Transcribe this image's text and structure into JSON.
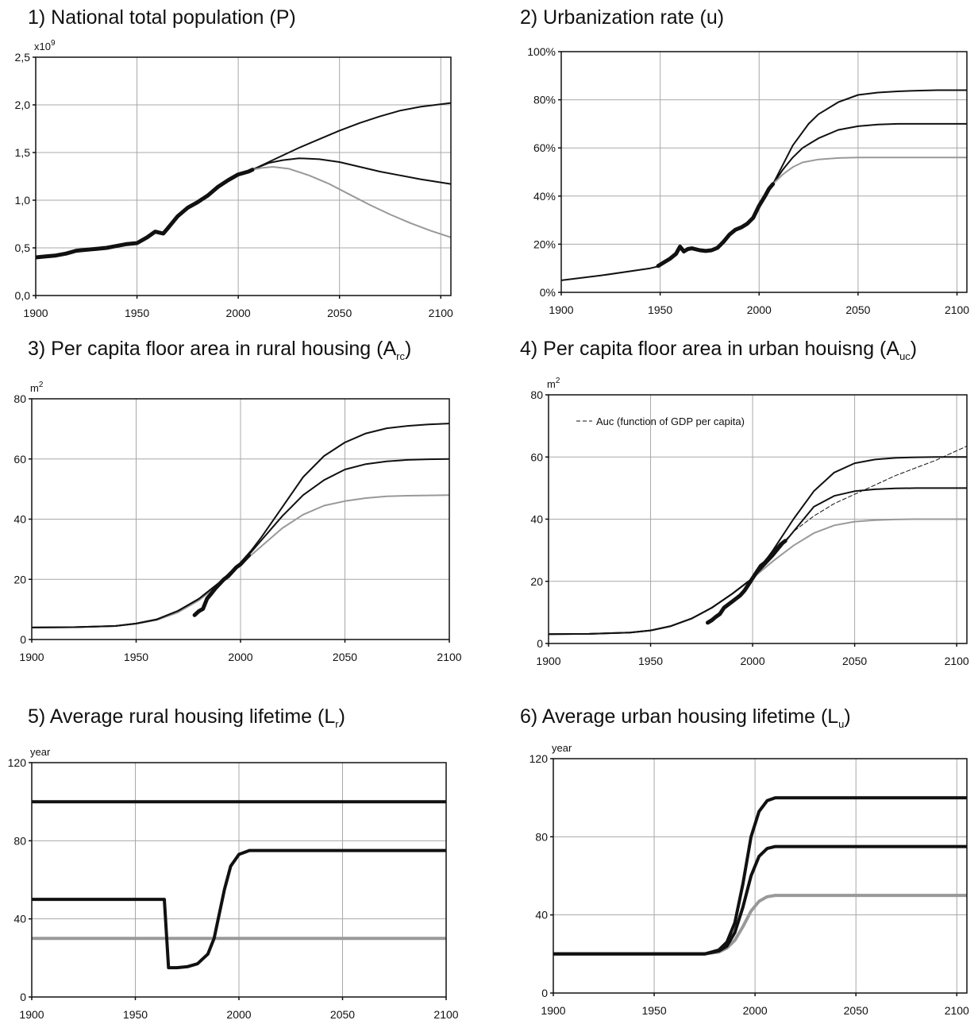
{
  "chart_data": [
    {
      "id": "p1",
      "type": "line",
      "title_main": "1) National total population (P)",
      "title_sub": "",
      "title_tail": "",
      "unit": "x10",
      "unit_sup": "9",
      "xlim": [
        1900,
        2105
      ],
      "ylim": [
        0,
        2.5
      ],
      "xticks": [
        1900,
        1950,
        2000,
        2050,
        2100
      ],
      "xtick_labels": [
        "1900",
        "1950",
        "2000",
        "2050",
        "2100"
      ],
      "yticks": [
        0,
        0.5,
        1.0,
        1.5,
        2.0,
        2.5
      ],
      "ytick_labels": [
        "0,0",
        "0,5",
        "1,0",
        "1,5",
        "2,0",
        "2,5"
      ],
      "series": [
        {
          "color": "#111111",
          "width": 2,
          "style": "solid",
          "x": [
            2007,
            2020,
            2030,
            2040,
            2050,
            2060,
            2070,
            2080,
            2090,
            2105
          ],
          "y": [
            1.32,
            1.45,
            1.55,
            1.64,
            1.73,
            1.81,
            1.88,
            1.94,
            1.98,
            2.02
          ]
        },
        {
          "color": "#111111",
          "width": 2,
          "style": "solid",
          "x": [
            2007,
            2015,
            2022,
            2030,
            2040,
            2050,
            2060,
            2070,
            2080,
            2090,
            2105
          ],
          "y": [
            1.32,
            1.39,
            1.42,
            1.44,
            1.43,
            1.4,
            1.35,
            1.3,
            1.26,
            1.22,
            1.17
          ]
        },
        {
          "color": "#999999",
          "width": 2,
          "style": "solid",
          "x": [
            2007,
            2012,
            2017,
            2025,
            2035,
            2045,
            2055,
            2065,
            2075,
            2085,
            2095,
            2105
          ],
          "y": [
            1.32,
            1.34,
            1.35,
            1.33,
            1.26,
            1.17,
            1.06,
            0.95,
            0.85,
            0.76,
            0.68,
            0.61
          ]
        },
        {
          "color": "#111111",
          "width": 5,
          "style": "solid",
          "x": [
            1900,
            1905,
            1910,
            1915,
            1920,
            1925,
            1930,
            1935,
            1940,
            1945,
            1950,
            1955,
            1959,
            1961,
            1963,
            1965,
            1970,
            1975,
            1980,
            1985,
            1990,
            1995,
            2000,
            2005,
            2007
          ],
          "y": [
            0.4,
            0.41,
            0.42,
            0.44,
            0.47,
            0.48,
            0.49,
            0.5,
            0.52,
            0.54,
            0.55,
            0.61,
            0.67,
            0.66,
            0.65,
            0.7,
            0.83,
            0.92,
            0.98,
            1.05,
            1.14,
            1.21,
            1.27,
            1.3,
            1.32
          ]
        }
      ]
    },
    {
      "id": "p2",
      "type": "line",
      "title_main": "2) Urbanization rate (u)",
      "title_sub": "",
      "title_tail": "",
      "unit": "",
      "unit_sup": "",
      "xlim": [
        1900,
        2105
      ],
      "ylim": [
        0,
        100
      ],
      "xticks": [
        1900,
        1950,
        2000,
        2050,
        2100
      ],
      "xtick_labels": [
        "1900",
        "1950",
        "2000",
        "2050",
        "2100"
      ],
      "yticks": [
        0,
        20,
        40,
        60,
        80,
        100
      ],
      "ytick_labels": [
        "0%",
        "20%",
        "40%",
        "60%",
        "80%",
        "100%"
      ],
      "series": [
        {
          "color": "#111111",
          "width": 2,
          "style": "solid",
          "x": [
            1900,
            1920,
            1945,
            1950
          ],
          "y": [
            5,
            7,
            10,
            11
          ]
        },
        {
          "color": "#111111",
          "width": 2,
          "style": "solid",
          "x": [
            2007,
            2012,
            2017,
            2025,
            2030,
            2040,
            2050,
            2060,
            2070,
            2080,
            2090,
            2105
          ],
          "y": [
            45,
            53,
            61,
            70,
            74,
            79,
            82,
            83,
            83.5,
            83.8,
            84,
            84
          ]
        },
        {
          "color": "#111111",
          "width": 2,
          "style": "solid",
          "x": [
            2007,
            2012,
            2017,
            2022,
            2030,
            2040,
            2050,
            2060,
            2070,
            2080,
            2105
          ],
          "y": [
            45,
            51,
            56,
            60,
            64,
            67.5,
            69,
            69.7,
            70,
            70,
            70
          ]
        },
        {
          "color": "#999999",
          "width": 2,
          "style": "solid",
          "x": [
            2007,
            2012,
            2017,
            2022,
            2030,
            2040,
            2050,
            2060,
            2070,
            2105
          ],
          "y": [
            45,
            49,
            52,
            54,
            55.2,
            55.8,
            56,
            56,
            56,
            56
          ]
        },
        {
          "color": "#111111",
          "width": 5,
          "style": "solid",
          "x": [
            1949,
            1952,
            1955,
            1958,
            1960,
            1962,
            1964,
            1966,
            1970,
            1973,
            1976,
            1979,
            1982,
            1985,
            1988,
            1991,
            1994,
            1997,
            2000,
            2003,
            2005,
            2007
          ],
          "y": [
            11,
            12.5,
            14,
            16,
            19,
            17,
            18,
            18.3,
            17.5,
            17.2,
            17.5,
            18.5,
            21,
            24,
            26,
            27,
            28.5,
            31,
            36,
            40,
            43,
            45
          ]
        }
      ]
    },
    {
      "id": "p3",
      "type": "line",
      "title_main": "3) Per capita floor area in rural housing (A",
      "title_sub": "rc",
      "title_tail": ")",
      "unit": "m",
      "unit_sup": "2",
      "xlim": [
        1900,
        2100
      ],
      "ylim": [
        0,
        80
      ],
      "xticks": [
        1900,
        1950,
        2000,
        2050,
        2100
      ],
      "xtick_labels": [
        "1900",
        "1950",
        "2000",
        "2050",
        "2100"
      ],
      "yticks": [
        0,
        20,
        40,
        60,
        80
      ],
      "ytick_labels": [
        "0",
        "20",
        "40",
        "60",
        "80"
      ],
      "series": [
        {
          "color": "#999999",
          "width": 2,
          "style": "solid",
          "x": [
            1900,
            1920,
            1940,
            1950,
            1960,
            1970,
            1980,
            1990,
            2000,
            2005,
            2010,
            2020,
            2030,
            2040,
            2050,
            2060,
            2070,
            2080,
            2090,
            2100
          ],
          "y": [
            4,
            4.1,
            4.5,
            5.2,
            6.5,
            9,
            13,
            18.5,
            25,
            28,
            31,
            37,
            41.5,
            44.5,
            46,
            47,
            47.6,
            47.8,
            47.9,
            48
          ]
        },
        {
          "color": "#111111",
          "width": 2,
          "style": "solid",
          "x": [
            1900,
            1920,
            1940,
            1950,
            1960,
            1970,
            1980,
            1990,
            2000,
            2005,
            2010,
            2020,
            2030,
            2040,
            2050,
            2060,
            2070,
            2080,
            2090,
            2100
          ],
          "y": [
            4,
            4.1,
            4.5,
            5.3,
            6.7,
            9.5,
            13.5,
            19,
            25.5,
            29,
            33,
            41,
            48,
            53,
            56.5,
            58.3,
            59.2,
            59.7,
            59.9,
            60
          ]
        },
        {
          "color": "#111111",
          "width": 2,
          "style": "solid",
          "x": [
            1900,
            1920,
            1940,
            1950,
            1960,
            1970,
            1980,
            1990,
            2000,
            2005,
            2010,
            2020,
            2030,
            2040,
            2050,
            2060,
            2070,
            2080,
            2090,
            2100
          ],
          "y": [
            4,
            4.1,
            4.5,
            5.3,
            6.7,
            9.5,
            13.5,
            19,
            25.5,
            29.5,
            34,
            44,
            54,
            61,
            65.5,
            68.5,
            70.2,
            71,
            71.5,
            71.8
          ]
        },
        {
          "color": "#111111",
          "width": 5,
          "style": "solid",
          "x": [
            1978,
            1980,
            1982,
            1984,
            1986,
            1988,
            1990,
            1992,
            1994,
            1996,
            1998,
            2000,
            2002,
            2004
          ],
          "y": [
            8.1,
            9.4,
            10.2,
            13.6,
            15.3,
            17,
            18.5,
            20,
            21,
            22.5,
            24,
            25,
            26.5,
            28
          ]
        }
      ]
    },
    {
      "id": "p4",
      "type": "line",
      "title_main": "4) Per capita floor area in urban houisng (A",
      "title_sub": "uc",
      "title_tail": ")",
      "unit": "m",
      "unit_sup": "2",
      "legend_text": "Auc (function of GDP per capita)",
      "xlim": [
        1900,
        2105
      ],
      "ylim": [
        0,
        80
      ],
      "xticks": [
        1900,
        1950,
        2000,
        2050,
        2100
      ],
      "xtick_labels": [
        "1900",
        "1950",
        "2000",
        "2050",
        "2100"
      ],
      "yticks": [
        0,
        20,
        40,
        60,
        80
      ],
      "ytick_labels": [
        "0",
        "20",
        "40",
        "60",
        "80"
      ],
      "series": [
        {
          "color": "#999999",
          "width": 2,
          "style": "solid",
          "x": [
            1900,
            1920,
            1940,
            1950,
            1960,
            1970,
            1980,
            1990,
            2000,
            2010,
            2020,
            2030,
            2040,
            2050,
            2060,
            2070,
            2080,
            2105
          ],
          "y": [
            3,
            3.1,
            3.5,
            4.2,
            5.6,
            8,
            11.5,
            16,
            21,
            26.5,
            31.5,
            35.5,
            38,
            39.2,
            39.7,
            39.9,
            40,
            40
          ]
        },
        {
          "color": "#111111",
          "width": 2,
          "style": "solid",
          "x": [
            1900,
            1920,
            1940,
            1950,
            1960,
            1970,
            1980,
            1990,
            2000,
            2010,
            2020,
            2030,
            2040,
            2050,
            2060,
            2070,
            2080,
            2105
          ],
          "y": [
            3,
            3.1,
            3.5,
            4.2,
            5.6,
            8,
            11.5,
            16,
            21,
            28,
            36,
            44,
            47.5,
            49,
            49.6,
            49.9,
            50,
            50
          ]
        },
        {
          "color": "#111111",
          "width": 2,
          "style": "solid",
          "x": [
            1900,
            1920,
            1940,
            1950,
            1960,
            1970,
            1980,
            1990,
            2000,
            2010,
            2020,
            2030,
            2040,
            2050,
            2060,
            2070,
            2080,
            2090,
            2105
          ],
          "y": [
            3,
            3.1,
            3.5,
            4.2,
            5.6,
            8,
            11.5,
            16,
            21,
            30,
            40,
            49,
            55,
            58,
            59.2,
            59.7,
            59.9,
            60,
            60
          ]
        },
        {
          "color": "#111111",
          "width": 1,
          "style": "dashed",
          "x": [
            2000,
            2010,
            2020,
            2030,
            2040,
            2050,
            2060,
            2070,
            2080,
            2090,
            2100,
            2105
          ],
          "y": [
            21,
            29,
            36,
            41,
            45,
            48,
            51,
            54,
            56.5,
            59,
            62,
            63.5
          ]
        },
        {
          "color": "#111111",
          "width": 5,
          "style": "solid",
          "x": [
            1978,
            1980,
            1982,
            1984,
            1986,
            1988,
            1990,
            1992,
            1994,
            1996,
            1998,
            2000,
            2002,
            2004,
            2006,
            2008,
            2010,
            2012,
            2014,
            2016
          ],
          "y": [
            6.7,
            7.5,
            8.6,
            9.5,
            11.5,
            12.5,
            13.5,
            14.5,
            15.5,
            17,
            19,
            21,
            23,
            25,
            26,
            27.5,
            29,
            30.5,
            32,
            33
          ]
        }
      ]
    },
    {
      "id": "p5",
      "type": "line",
      "title_main": "5) Average rural housing lifetime (L",
      "title_sub": "r",
      "title_tail": ")",
      "unit": "year",
      "unit_sup": "",
      "xlim": [
        1900,
        2100
      ],
      "ylim": [
        0,
        120
      ],
      "xticks": [
        1900,
        1950,
        2000,
        2050,
        2100
      ],
      "xtick_labels": [
        "1900",
        "1950",
        "2000",
        "2050",
        "2100"
      ],
      "yticks": [
        0,
        40,
        80,
        120
      ],
      "ytick_labels": [
        "0",
        "40",
        "80",
        "120"
      ],
      "series": [
        {
          "color": "#999999",
          "width": 4,
          "style": "solid",
          "x": [
            1900,
            2100
          ],
          "y": [
            30,
            30
          ]
        },
        {
          "color": "#111111",
          "width": 4,
          "style": "solid",
          "x": [
            1900,
            2100
          ],
          "y": [
            100,
            100
          ]
        },
        {
          "color": "#111111",
          "width": 4,
          "style": "solid",
          "x": [
            1900,
            1964,
            1966,
            1970,
            1975,
            1980,
            1985,
            1988,
            1990,
            1993,
            1996,
            2000,
            2005,
            2010,
            2100
          ],
          "y": [
            50,
            50,
            15,
            15,
            15.5,
            17,
            22,
            30,
            40,
            55,
            67,
            73,
            75,
            75,
            75
          ]
        }
      ]
    },
    {
      "id": "p6",
      "type": "line",
      "title_main": "6) Average urban housing lifetime (L",
      "title_sub": "u",
      "title_tail": ")",
      "unit": "year",
      "unit_sup": "",
      "xlim": [
        1900,
        2105
      ],
      "ylim": [
        0,
        120
      ],
      "xticks": [
        1900,
        1950,
        2000,
        2050,
        2100
      ],
      "xtick_labels": [
        "1900",
        "1950",
        "2000",
        "2050",
        "2100"
      ],
      "yticks": [
        0,
        40,
        80,
        120
      ],
      "ytick_labels": [
        "0",
        "40",
        "80",
        "120"
      ],
      "series": [
        {
          "color": "#999999",
          "width": 4,
          "style": "solid",
          "x": [
            1900,
            1975,
            1982,
            1986,
            1990,
            1994,
            1998,
            2002,
            2006,
            2010,
            2020,
            2105
          ],
          "y": [
            20,
            20,
            21,
            23,
            27,
            34,
            42,
            47,
            49.3,
            50,
            50,
            50
          ]
        },
        {
          "color": "#111111",
          "width": 4,
          "style": "solid",
          "x": [
            1900,
            1975,
            1982,
            1986,
            1990,
            1994,
            1998,
            2002,
            2006,
            2010,
            2020,
            2105
          ],
          "y": [
            20,
            20,
            21.5,
            24,
            31,
            44,
            60,
            70,
            74,
            75,
            75,
            75
          ]
        },
        {
          "color": "#111111",
          "width": 4,
          "style": "solid",
          "x": [
            1900,
            1975,
            1982,
            1986,
            1990,
            1994,
            1998,
            2002,
            2006,
            2010,
            2020,
            2105
          ],
          "y": [
            20,
            20,
            22,
            26,
            36,
            56,
            80,
            93,
            98.5,
            100,
            100,
            100
          ]
        }
      ]
    }
  ]
}
